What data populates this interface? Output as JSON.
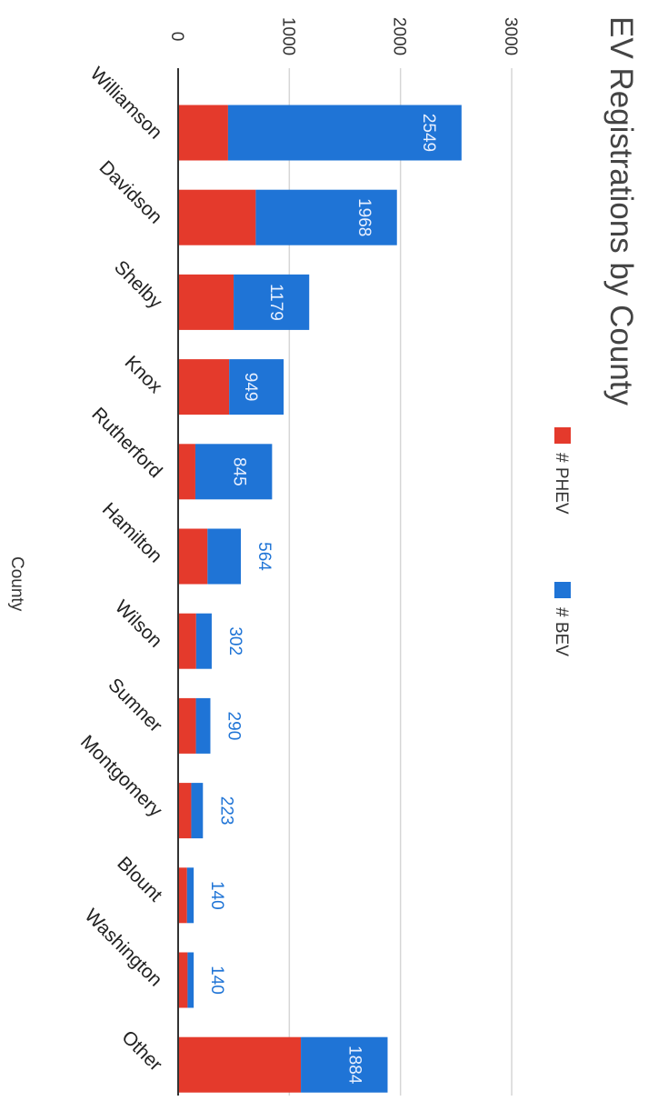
{
  "chart_data": {
    "type": "bar",
    "orientation": "vertical bars, figure rotated 90 degrees clockwise",
    "title": "EV Registrations by County",
    "xlabel": "County",
    "ylabel": "",
    "ylim": [
      0,
      3000
    ],
    "y_ticks": [
      "0",
      "1000",
      "2000",
      "3000"
    ],
    "grid": true,
    "stacked": true,
    "legend": {
      "placement": "top",
      "entries": [
        "# PHEV",
        "# BEV"
      ]
    },
    "categories": [
      "Williamson",
      "Davidson",
      "Shelby",
      "Knox",
      "Rutherford",
      "Hamilton",
      "Wilson",
      "Sumner",
      "Montgomery",
      "Blount",
      "Washington",
      "Other"
    ],
    "series": [
      {
        "name": "# BEV",
        "color": "#1f74d6",
        "values": [
          2100,
          1270,
          680,
          490,
          690,
          300,
          140,
          130,
          105,
          60,
          55,
          780
        ]
      },
      {
        "name": "# PHEV",
        "color": "#e43a2c",
        "values": [
          449,
          698,
          499,
          459,
          155,
          264,
          162,
          160,
          118,
          80,
          85,
          1104
        ]
      }
    ],
    "totals": [
      2549,
      1968,
      1179,
      949,
      845,
      564,
      302,
      290,
      223,
      140,
      140,
      1884
    ],
    "data_labels": [
      "2549",
      "1968",
      "1179",
      "949",
      "845",
      "564",
      "302",
      "290",
      "223",
      "140",
      "140",
      "1884"
    ]
  }
}
